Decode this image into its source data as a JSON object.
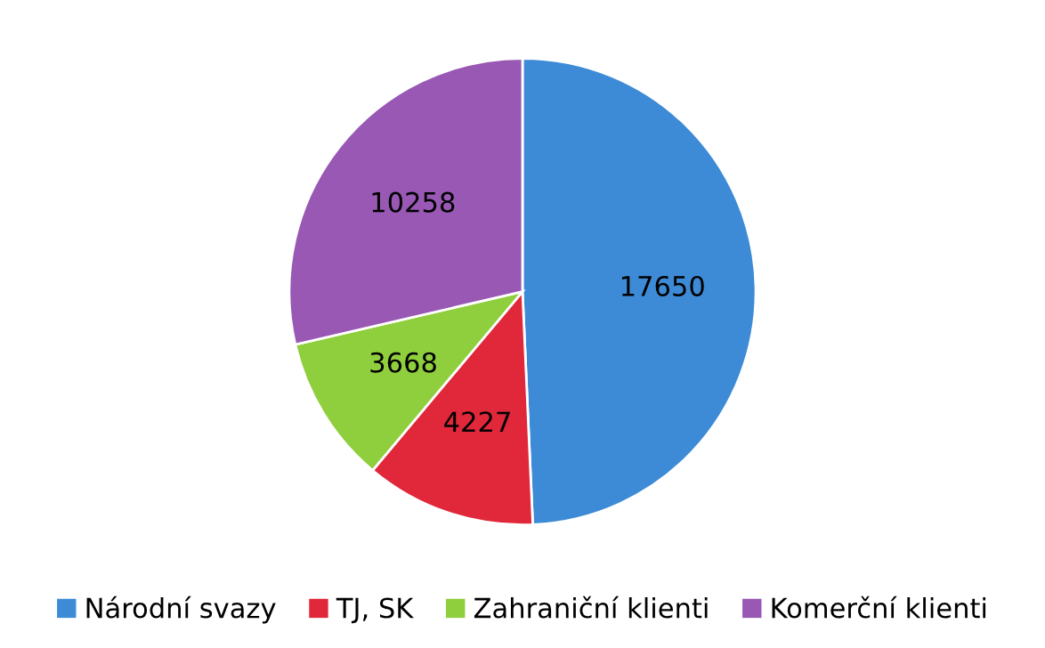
{
  "chart_data": {
    "type": "pie",
    "categories": [
      "Národní svazy",
      "TJ, SK",
      "Zahraniční klienti",
      "Komerční klienti"
    ],
    "values": [
      17650,
      4227,
      3668,
      10258
    ],
    "colors": [
      "#3d8bd6",
      "#e0283a",
      "#8fce3c",
      "#9858b4"
    ],
    "data_labels": true,
    "legend": "bottom"
  }
}
